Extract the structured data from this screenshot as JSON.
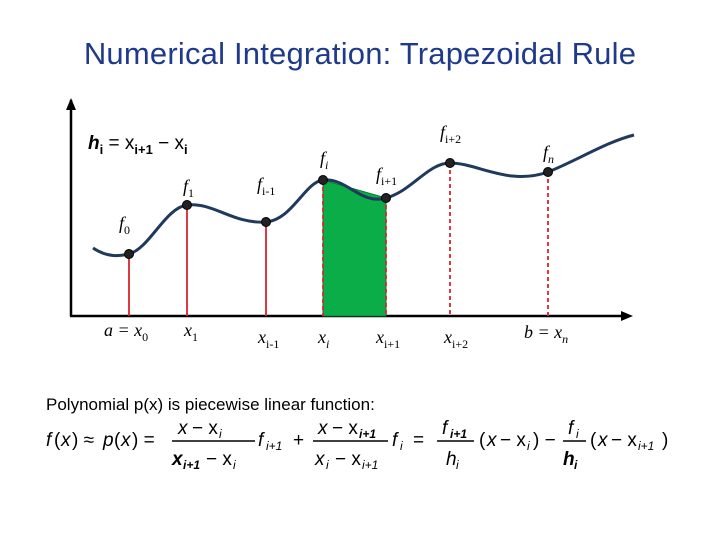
{
  "title": "Numerical Integration: Trapezoidal Rule",
  "step_definition": "h",
  "fn_labels": {
    "f0": "f",
    "f0_sub": "0",
    "f1": "f",
    "f1_sub": "1",
    "fim1": "f",
    "fim1_sub": "i-1",
    "fi": "f",
    "fi_sub": "i",
    "fip1": "f",
    "fip1_sub": "i+1",
    "fip2": "f",
    "fip2_sub": "i+2",
    "fn": "f",
    "fn_sub": "n"
  },
  "x_labels": {
    "a": "a = x",
    "a_sub": "0",
    "x1": "x",
    "x1_sub": "1",
    "xim1": "x",
    "xim1_sub": "i-1",
    "xi": "x",
    "xi_sub": "i",
    "xip1": "x",
    "xip1_sub": "i+1",
    "xip2": "x",
    "xip2_sub": "i+2",
    "b": "b = x",
    "b_sub": "n"
  },
  "h_equation": {
    "h": "h",
    "h_sub": "i",
    "eq": " = x",
    "x1_sub": "i+1",
    "minus": " − x",
    "x2_sub": "i"
  },
  "description": "Polynomial p(x) is piecewise linear function:",
  "colors": {
    "title": "#1f3a8a",
    "curve": "#1f3a5c",
    "area": "#0aad47",
    "vline_red": "#d9242c",
    "axis": "#000000"
  }
}
